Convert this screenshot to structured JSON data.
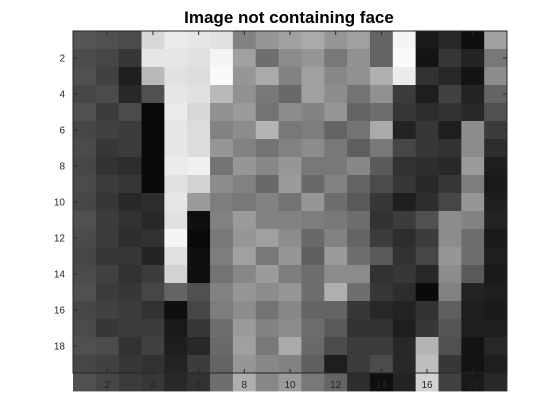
{
  "chart_data": {
    "type": "heatmap",
    "title": "Image not containing face",
    "xlabel": "",
    "ylabel": "",
    "colormap": "gray",
    "value_range": [
      0,
      255
    ],
    "xlim": [
      0.5,
      19.5
    ],
    "ylim": [
      0.5,
      19.5
    ],
    "y_direction": "reverse",
    "grid": false,
    "x_ticks": [
      2,
      4,
      6,
      8,
      10,
      12,
      14,
      16,
      18
    ],
    "y_ticks": [
      2,
      4,
      6,
      8,
      10,
      12,
      14,
      16,
      18
    ],
    "x_tick_labels": [
      "2",
      "4",
      "6",
      "8",
      "10",
      "12",
      "14",
      "16",
      "18"
    ],
    "y_tick_labels": [
      "2",
      "4",
      "6",
      "8",
      "10",
      "12",
      "14",
      "16",
      "18"
    ],
    "values": [
      [
        85,
        80,
        75,
        215,
        235,
        230,
        225,
        130,
        150,
        160,
        170,
        150,
        160,
        100,
        245,
        25,
        40,
        15,
        160
      ],
      [
        75,
        70,
        55,
        230,
        230,
        225,
        245,
        160,
        110,
        140,
        150,
        120,
        145,
        100,
        250,
        20,
        55,
        35,
        120
      ],
      [
        80,
        65,
        30,
        185,
        225,
        220,
        250,
        150,
        170,
        130,
        160,
        135,
        145,
        175,
        235,
        50,
        40,
        20,
        140
      ],
      [
        70,
        75,
        40,
        80,
        230,
        225,
        185,
        145,
        120,
        105,
        160,
        140,
        115,
        145,
        60,
        30,
        65,
        35,
        100
      ],
      [
        80,
        60,
        75,
        10,
        235,
        215,
        145,
        155,
        115,
        140,
        130,
        150,
        100,
        110,
        55,
        45,
        50,
        40,
        80
      ],
      [
        70,
        65,
        60,
        10,
        230,
        220,
        130,
        140,
        180,
        120,
        125,
        100,
        115,
        170,
        35,
        55,
        30,
        140,
        60
      ],
      [
        75,
        55,
        60,
        10,
        230,
        220,
        150,
        130,
        115,
        130,
        140,
        120,
        95,
        120,
        70,
        55,
        50,
        140,
        45
      ],
      [
        70,
        50,
        45,
        10,
        235,
        240,
        115,
        150,
        135,
        150,
        120,
        120,
        135,
        90,
        50,
        45,
        40,
        155,
        30
      ],
      [
        75,
        60,
        55,
        10,
        225,
        210,
        140,
        130,
        105,
        155,
        105,
        130,
        100,
        75,
        55,
        40,
        55,
        125,
        25
      ],
      [
        70,
        55,
        40,
        45,
        230,
        155,
        125,
        120,
        130,
        115,
        150,
        110,
        90,
        55,
        30,
        45,
        70,
        150,
        30
      ],
      [
        80,
        60,
        50,
        40,
        225,
        15,
        130,
        155,
        130,
        130,
        125,
        120,
        110,
        50,
        60,
        80,
        140,
        130,
        35
      ],
      [
        75,
        60,
        45,
        50,
        245,
        10,
        120,
        150,
        160,
        140,
        105,
        130,
        100,
        60,
        45,
        60,
        140,
        110,
        25
      ],
      [
        70,
        55,
        55,
        35,
        225,
        15,
        125,
        160,
        120,
        150,
        95,
        155,
        110,
        90,
        50,
        70,
        150,
        110,
        30
      ],
      [
        75,
        65,
        50,
        60,
        210,
        15,
        115,
        135,
        155,
        125,
        110,
        140,
        140,
        50,
        55,
        40,
        140,
        90,
        25
      ],
      [
        80,
        60,
        55,
        70,
        100,
        80,
        130,
        150,
        140,
        150,
        110,
        175,
        110,
        55,
        45,
        10,
        130,
        35,
        30
      ],
      [
        70,
        65,
        60,
        50,
        15,
        70,
        125,
        140,
        115,
        135,
        100,
        100,
        55,
        40,
        35,
        50,
        95,
        30,
        25
      ],
      [
        75,
        55,
        60,
        60,
        25,
        55,
        110,
        155,
        130,
        140,
        110,
        90,
        50,
        50,
        30,
        55,
        85,
        30,
        30
      ],
      [
        80,
        75,
        50,
        65,
        30,
        40,
        105,
        160,
        120,
        170,
        105,
        75,
        60,
        60,
        40,
        180,
        80,
        20,
        40
      ],
      [
        70,
        65,
        55,
        50,
        35,
        60,
        100,
        150,
        135,
        130,
        95,
        30,
        60,
        75,
        40,
        190,
        55,
        20,
        30
      ],
      [
        80,
        70,
        60,
        55,
        40,
        50,
        110,
        175,
        135,
        155,
        120,
        100,
        45,
        15,
        35,
        210,
        65,
        25,
        40
      ]
    ]
  }
}
